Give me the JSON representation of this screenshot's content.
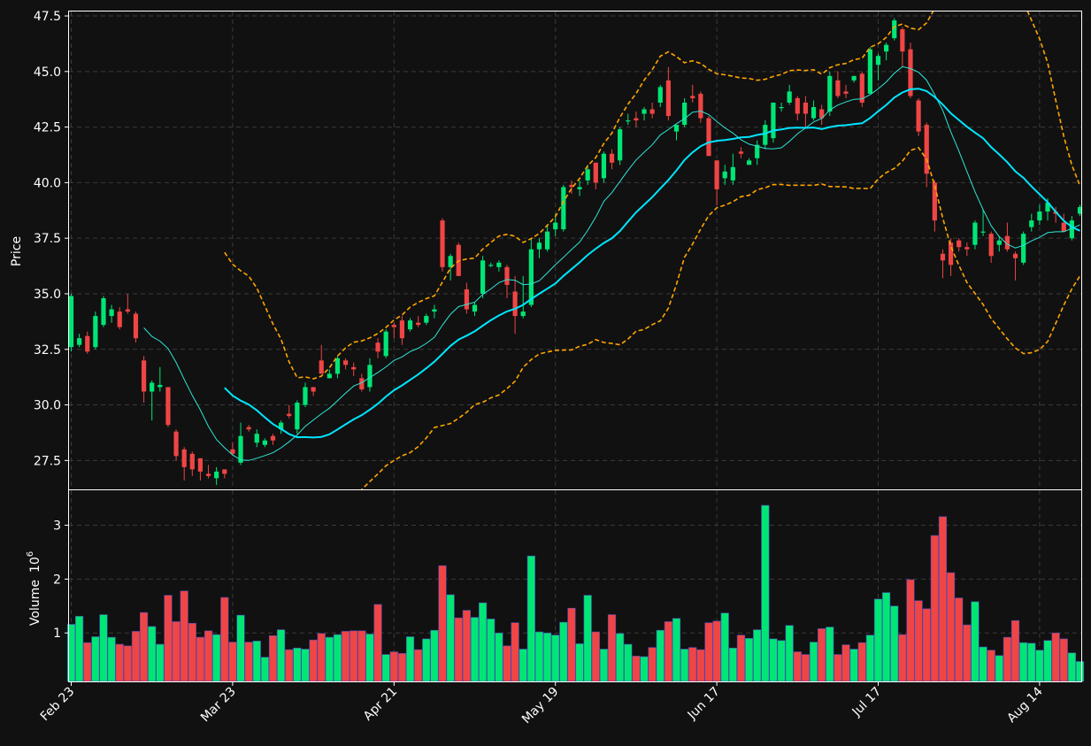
{
  "colors": {
    "background": "#111111",
    "up": "#00e676",
    "down": "#f04545",
    "ma_fast": "#2ee6d6",
    "ma_slow": "#00e5ff",
    "band": "#ffa500"
  },
  "chart_data": {
    "type": "candlestick",
    "price_panel": {
      "ylabel": "Price",
      "ylim": [
        26.2,
        47.7
      ],
      "yticks": [
        "27.5",
        "30.0",
        "32.5",
        "35.0",
        "37.5",
        "40.0",
        "42.5",
        "45.0",
        "47.5"
      ],
      "grid": true
    },
    "volume_panel": {
      "ylabel": "Volume",
      "yunit": "10",
      "yunit_exp": "6",
      "ylim": [
        0.1,
        3.65
      ],
      "yticks": [
        "1",
        "2",
        "3"
      ],
      "grid": true
    },
    "x_ticks": [
      {
        "label": "Feb 23",
        "index": 0
      },
      {
        "label": "Mar 23",
        "index": 20
      },
      {
        "label": "Apr 21",
        "index": 40
      },
      {
        "label": "May 19",
        "index": 60
      },
      {
        "label": "Jun 17",
        "index": 80
      },
      {
        "label": "Jul 17",
        "index": 100
      },
      {
        "label": "Aug 14",
        "index": 120
      }
    ],
    "series": [
      {
        "name": "ohlcv",
        "values": [
          [
            32.6,
            35.0,
            32.4,
            34.9,
            1.16
          ],
          [
            32.7,
            33.2,
            32.6,
            33.0,
            1.31
          ],
          [
            33.1,
            33.3,
            32.3,
            32.4,
            0.82
          ],
          [
            32.6,
            34.2,
            32.5,
            34.0,
            0.93
          ],
          [
            33.6,
            34.9,
            33.5,
            34.8,
            1.34
          ],
          [
            34.0,
            34.5,
            33.7,
            34.3,
            0.92
          ],
          [
            34.2,
            34.4,
            33.4,
            33.5,
            0.79
          ],
          [
            34.3,
            35.0,
            34.1,
            34.2,
            0.76
          ],
          [
            34.1,
            34.2,
            32.8,
            33.0,
            1.03
          ],
          [
            32.0,
            32.2,
            30.1,
            30.6,
            1.38
          ],
          [
            30.6,
            31.1,
            29.3,
            31.0,
            1.12
          ],
          [
            30.8,
            31.7,
            30.6,
            30.9,
            0.79
          ],
          [
            30.8,
            30.8,
            29.0,
            29.1,
            1.7
          ],
          [
            28.8,
            28.9,
            27.5,
            27.7,
            1.21
          ],
          [
            28.0,
            28.1,
            26.6,
            27.2,
            1.78
          ],
          [
            27.8,
            27.9,
            26.8,
            27.1,
            1.18
          ],
          [
            27.6,
            27.6,
            26.6,
            27.0,
            0.92
          ],
          [
            26.9,
            27.3,
            26.7,
            26.8,
            1.04
          ],
          [
            26.7,
            27.2,
            26.4,
            27.0,
            0.97
          ],
          [
            27.1,
            27.1,
            26.7,
            26.9,
            1.66
          ],
          [
            28.0,
            28.3,
            27.7,
            27.8,
            0.83
          ],
          [
            27.4,
            29.2,
            27.3,
            28.6,
            1.33
          ],
          [
            29.0,
            29.1,
            28.8,
            28.9,
            0.83
          ],
          [
            28.3,
            28.9,
            28.1,
            28.7,
            0.85
          ],
          [
            28.2,
            28.5,
            28.1,
            28.4,
            0.55
          ],
          [
            28.6,
            28.7,
            28.2,
            28.4,
            0.95
          ],
          [
            28.9,
            29.3,
            28.7,
            29.2,
            1.06
          ],
          [
            29.6,
            30.0,
            29.4,
            29.5,
            0.69
          ],
          [
            28.9,
            30.2,
            28.7,
            30.1,
            0.72
          ],
          [
            30.0,
            31.0,
            29.9,
            30.8,
            0.7
          ],
          [
            30.8,
            30.8,
            30.4,
            30.6,
            0.87
          ],
          [
            32.0,
            32.7,
            31.4,
            31.4,
            0.99
          ],
          [
            31.2,
            31.6,
            31.2,
            31.4,
            0.92
          ],
          [
            31.4,
            32.2,
            31.2,
            32.1,
            0.97
          ],
          [
            32.0,
            32.1,
            31.6,
            31.8,
            1.03
          ],
          [
            31.7,
            31.9,
            31.3,
            31.6,
            1.04
          ],
          [
            31.2,
            31.4,
            30.6,
            30.7,
            1.04
          ],
          [
            30.8,
            32.1,
            30.6,
            31.8,
            0.98
          ],
          [
            32.8,
            33.0,
            32.1,
            32.4,
            1.53
          ],
          [
            32.2,
            33.4,
            32.1,
            33.3,
            0.6
          ],
          [
            33.6,
            33.7,
            33.0,
            33.5,
            0.65
          ],
          [
            33.8,
            34.0,
            32.7,
            33.0,
            0.62
          ],
          [
            33.4,
            33.9,
            33.3,
            33.8,
            0.93
          ],
          [
            33.7,
            34.0,
            33.5,
            33.6,
            0.69
          ],
          [
            33.7,
            34.1,
            33.6,
            34.0,
            0.89
          ],
          [
            34.2,
            34.5,
            33.9,
            34.3,
            1.05
          ],
          [
            38.3,
            38.4,
            36.0,
            36.2,
            2.25
          ],
          [
            36.2,
            36.8,
            35.6,
            36.7,
            1.71
          ],
          [
            37.2,
            37.3,
            35.8,
            35.8,
            1.28
          ],
          [
            35.2,
            35.5,
            34.1,
            34.3,
            1.42
          ],
          [
            34.2,
            34.6,
            34.0,
            34.5,
            1.29
          ],
          [
            35.0,
            36.7,
            34.8,
            36.5,
            1.56
          ],
          [
            36.3,
            36.4,
            36.2,
            36.3,
            1.26
          ],
          [
            36.2,
            36.5,
            36.0,
            36.4,
            1.0
          ],
          [
            36.2,
            36.3,
            34.8,
            35.4,
            0.76
          ],
          [
            35.1,
            35.8,
            33.2,
            34.0,
            1.19
          ],
          [
            34.0,
            35.8,
            33.9,
            34.2,
            0.7
          ],
          [
            34.5,
            37.5,
            34.4,
            37.0,
            2.43
          ],
          [
            37.0,
            37.5,
            36.6,
            37.3,
            1.02
          ],
          [
            37.0,
            38.1,
            36.9,
            37.8,
            1.0
          ],
          [
            37.9,
            38.6,
            37.6,
            38.2,
            0.96
          ],
          [
            37.9,
            39.9,
            37.8,
            39.8,
            1.2
          ],
          [
            39.9,
            40.1,
            39.5,
            39.8,
            1.46
          ],
          [
            39.7,
            40.1,
            39.4,
            39.8,
            0.8
          ],
          [
            40.1,
            40.8,
            39.9,
            40.6,
            1.7
          ],
          [
            40.9,
            40.9,
            39.7,
            40.0,
            1.02
          ],
          [
            40.2,
            41.4,
            40.0,
            41.3,
            0.7
          ],
          [
            41.3,
            41.5,
            40.6,
            40.9,
            1.34
          ],
          [
            41.0,
            42.5,
            40.8,
            42.4,
            0.99
          ],
          [
            42.8,
            43.1,
            42.6,
            42.8,
            0.79
          ],
          [
            42.9,
            43.2,
            42.5,
            42.8,
            0.57
          ],
          [
            43.1,
            43.4,
            42.8,
            43.3,
            0.56
          ],
          [
            43.3,
            43.6,
            42.9,
            43.1,
            0.73
          ],
          [
            43.6,
            44.4,
            43.4,
            44.3,
            1.05
          ],
          [
            44.6,
            45.2,
            42.8,
            43.0,
            1.21
          ],
          [
            42.3,
            42.6,
            41.9,
            42.6,
            1.27
          ],
          [
            42.6,
            43.8,
            42.5,
            43.6,
            0.7
          ],
          [
            43.9,
            44.4,
            43.6,
            43.8,
            0.73
          ],
          [
            44.0,
            44.1,
            42.7,
            42.9,
            0.69
          ],
          [
            42.9,
            43.0,
            41.6,
            41.2,
            1.19
          ],
          [
            41.0,
            41.0,
            39.0,
            39.7,
            1.22
          ],
          [
            40.2,
            40.8,
            39.9,
            40.5,
            1.37
          ],
          [
            40.1,
            41.3,
            39.9,
            40.7,
            0.72
          ],
          [
            41.4,
            41.6,
            41.1,
            41.3,
            0.96
          ],
          [
            40.8,
            41.1,
            40.9,
            41.0,
            0.9
          ],
          [
            41.1,
            41.9,
            40.8,
            41.7,
            1.06
          ],
          [
            41.7,
            42.8,
            41.5,
            42.6,
            3.37
          ],
          [
            42.0,
            43.2,
            41.8,
            43.6,
            0.89
          ],
          [
            43.4,
            43.6,
            43.2,
            43.4,
            0.86
          ],
          [
            43.6,
            44.4,
            43.5,
            44.1,
            1.14
          ],
          [
            43.8,
            43.9,
            42.8,
            43.1,
            0.65
          ],
          [
            43.6,
            43.9,
            42.5,
            43.1,
            0.6
          ],
          [
            42.9,
            43.7,
            42.8,
            43.4,
            0.83
          ],
          [
            43.3,
            43.5,
            42.6,
            42.9,
            1.08
          ],
          [
            43.2,
            45.0,
            43.0,
            44.8,
            1.11
          ],
          [
            44.6,
            45.0,
            43.8,
            43.9,
            0.6
          ],
          [
            44.1,
            44.4,
            43.8,
            44.0,
            0.78
          ],
          [
            44.6,
            44.8,
            44.5,
            44.8,
            0.7
          ],
          [
            44.9,
            45.0,
            43.4,
            43.6,
            0.82
          ],
          [
            44.0,
            46.1,
            44.0,
            46.0,
            0.96
          ],
          [
            45.3,
            45.8,
            44.6,
            45.7,
            1.63
          ],
          [
            45.9,
            46.3,
            45.5,
            46.2,
            1.75
          ],
          [
            46.5,
            47.4,
            46.4,
            47.3,
            1.5
          ],
          [
            46.9,
            47.0,
            45.2,
            45.9,
            0.97
          ],
          [
            46.0,
            46.3,
            43.8,
            43.9,
            1.99
          ],
          [
            43.7,
            43.8,
            42.1,
            42.3,
            1.6
          ],
          [
            42.6,
            42.7,
            39.8,
            40.4,
            1.45
          ],
          [
            40.0,
            40.1,
            37.8,
            38.3,
            2.81
          ],
          [
            36.8,
            37.0,
            35.7,
            36.5,
            3.16
          ],
          [
            37.3,
            37.5,
            35.8,
            36.3,
            2.12
          ],
          [
            37.4,
            37.5,
            36.9,
            37.1,
            1.65
          ],
          [
            37.1,
            37.3,
            36.7,
            37.0,
            1.15
          ],
          [
            37.2,
            38.3,
            37.0,
            38.2,
            1.58
          ],
          [
            37.8,
            38.8,
            37.6,
            37.8,
            0.74
          ],
          [
            37.7,
            37.8,
            36.4,
            36.7,
            0.68
          ],
          [
            37.2,
            37.6,
            36.9,
            37.4,
            0.58
          ],
          [
            37.6,
            38.2,
            36.9,
            37.0,
            0.92
          ],
          [
            36.8,
            36.9,
            35.6,
            36.6,
            1.23
          ],
          [
            36.4,
            37.8,
            36.3,
            37.7,
            0.82
          ],
          [
            38.0,
            38.6,
            37.8,
            38.3,
            0.81
          ],
          [
            38.3,
            39.0,
            38.1,
            38.7,
            0.68
          ],
          [
            38.7,
            39.3,
            38.3,
            39.1,
            0.86
          ],
          [
            38.7,
            38.9,
            38.2,
            38.6,
            1.0
          ],
          [
            38.2,
            38.6,
            37.9,
            37.8,
            0.89
          ],
          [
            37.5,
            38.5,
            37.4,
            38.3,
            0.63
          ],
          [
            38.6,
            39.0,
            38.5,
            38.9,
            0.47
          ]
        ]
      },
      {
        "name": "ma_fast",
        "values": []
      },
      {
        "name": "ma_slow",
        "values": []
      },
      {
        "name": "band_upper",
        "values": []
      },
      {
        "name": "band_lower",
        "values": []
      }
    ]
  }
}
